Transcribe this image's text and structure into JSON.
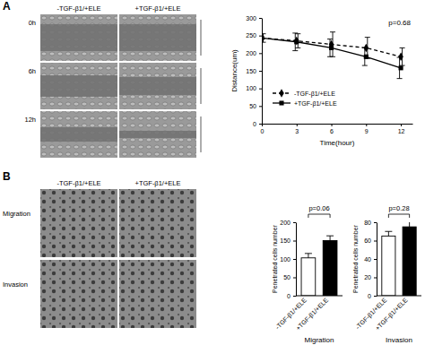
{
  "figure": {
    "panels": [
      "A",
      "B"
    ],
    "wound_images": {
      "columns": [
        "-TGF-β1/+ELE",
        "+TGF-β1/+ELE"
      ],
      "rows": [
        "0h",
        "6h",
        "12h"
      ]
    },
    "transwell_images": {
      "columns": [
        "-TGF-β1/+ELE",
        "+TGF-β1/+ELE"
      ],
      "rows": [
        "Migration",
        "Invasion"
      ]
    }
  },
  "chart_data": [
    {
      "type": "line",
      "x_label": "Time(hour)",
      "y_label": "Distance(um)",
      "x": [
        0,
        3,
        6,
        9,
        12
      ],
      "series": [
        {
          "name": "-TGF-β1/+ELE",
          "color": "#000000",
          "marker": "diamond",
          "line_style": "dashed",
          "values": [
            243,
            235,
            225,
            215,
            190
          ],
          "errors": [
            12,
            20,
            35,
            30,
            25
          ]
        },
        {
          "name": "+TGF-β1/+ELE",
          "color": "#000000",
          "marker": "square",
          "line_style": "solid",
          "values": [
            243,
            232,
            215,
            190,
            158
          ],
          "errors": [
            10,
            25,
            25,
            25,
            30
          ]
        }
      ],
      "xlim": [
        0,
        13
      ],
      "xticks": [
        0,
        3,
        6,
        9,
        12
      ],
      "ylim": [
        0,
        300
      ],
      "yticks": [
        0,
        50,
        100,
        150,
        200,
        250,
        300
      ],
      "legend": "lower left",
      "annotations": [
        "p=0.68"
      ]
    },
    {
      "type": "bar",
      "x_label": "Migration",
      "y_label": "Penetrated cells number",
      "categories": [
        "-TGF-β1/+ELE",
        "+TGF-β1/+ELE"
      ],
      "values": [
        103,
        150
      ],
      "errors": [
        12,
        13
      ],
      "colors": [
        "#ffffff",
        "#000000"
      ],
      "ylim": [
        0,
        200
      ],
      "yticks": [
        0,
        50,
        100,
        150,
        200
      ],
      "annotations": [
        "p=0.06"
      ]
    },
    {
      "type": "bar",
      "x_label": "Invasion",
      "y_label": "Penetrated cells number",
      "categories": [
        "-TGF-β1/+ELE",
        "+TGF-β1/+ELE"
      ],
      "values": [
        65,
        75
      ],
      "errors": [
        5,
        7
      ],
      "colors": [
        "#ffffff",
        "#000000"
      ],
      "ylim": [
        0,
        80
      ],
      "yticks": [
        0,
        20,
        40,
        60,
        80
      ],
      "annotations": [
        "p=0.28"
      ]
    }
  ]
}
